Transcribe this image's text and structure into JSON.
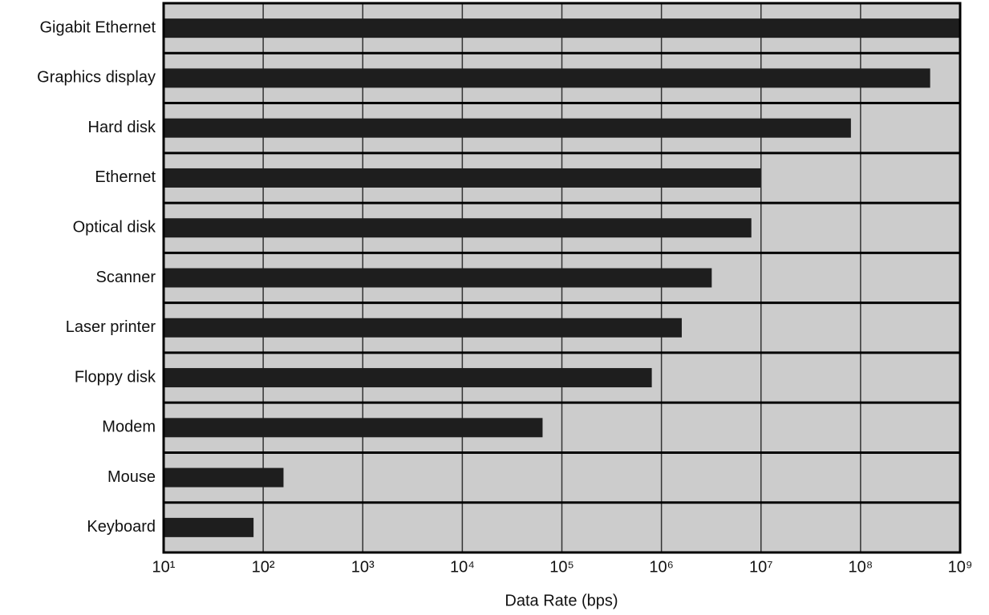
{
  "chart_data": {
    "type": "bar",
    "orientation": "horizontal",
    "x_label": "Data Rate (bps)",
    "categories": [
      "Gigabit Ethernet",
      "Graphics display",
      "Hard disk",
      "Ethernet",
      "Optical disk",
      "Scanner",
      "Laser printer",
      "Floppy disk",
      "Modem",
      "Mouse",
      "Keyboard"
    ],
    "values": [
      1000000000,
      500000000,
      80000000,
      10000000,
      8000000,
      3200000,
      1600000,
      800000,
      64000,
      160,
      80
    ],
    "color": "#1e1e1e",
    "xscale": "log",
    "xlim": [
      10,
      1000000000
    ],
    "xticks": [
      {
        "value": 10,
        "label": "10¹"
      },
      {
        "value": 100,
        "label": "10²"
      },
      {
        "value": 1000,
        "label": "10³"
      },
      {
        "value": 10000,
        "label": "10⁴"
      },
      {
        "value": 100000,
        "label": "10⁵"
      },
      {
        "value": 1000000,
        "label": "10⁶"
      },
      {
        "value": 10000000,
        "label": "10⁷"
      },
      {
        "value": 100000000,
        "label": "10⁸"
      },
      {
        "value": 1000000000,
        "label": "10⁹"
      }
    ],
    "grid": true
  }
}
